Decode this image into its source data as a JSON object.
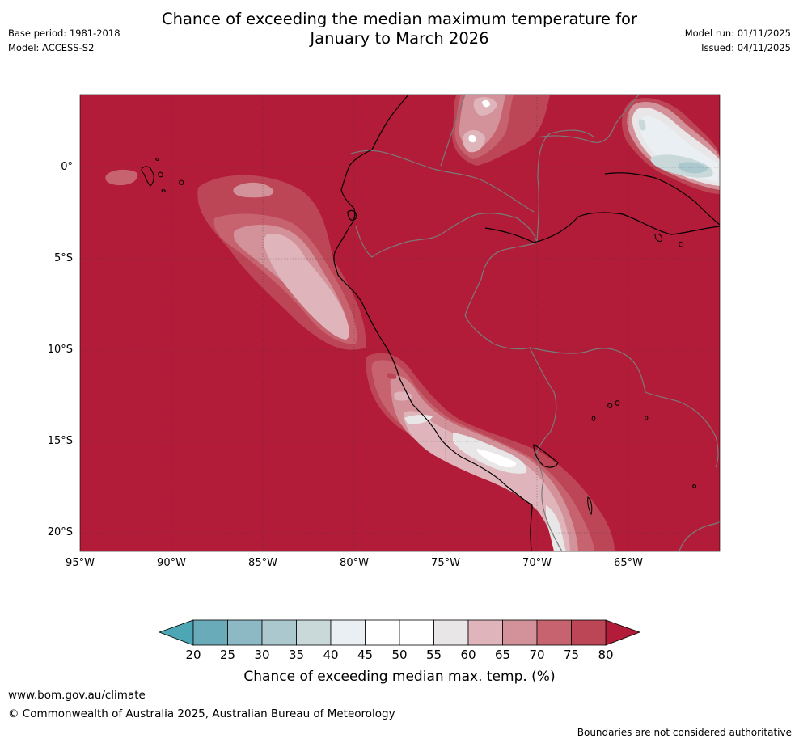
{
  "header": {
    "title_line1": "Chance of exceeding the median maximum temperature for",
    "title_line2": "January to March 2026",
    "base_period": "Base period: 1981-2018",
    "model": "Model: ACCESS-S2",
    "model_run": "Model run: 01/11/2025",
    "issued": "Issued: 04/11/2025"
  },
  "map": {
    "lat_labels": [
      "0°",
      "5°S",
      "10°S",
      "15°S",
      "20°S"
    ],
    "lon_labels": [
      "95°W",
      "90°W",
      "85°W",
      "80°W",
      "75°W",
      "70°W",
      "65°W"
    ],
    "background_color": "#b31c38"
  },
  "colorbar": {
    "ticks": [
      "20",
      "25",
      "30",
      "35",
      "40",
      "45",
      "50",
      "55",
      "60",
      "65",
      "70",
      "75",
      "80"
    ],
    "colors": [
      "#6aabb9",
      "#8cb9c4",
      "#abc8ce",
      "#c9d8d9",
      "#e9eff2",
      "#ffffff",
      "#ffffff",
      "#e8e6e6",
      "#dfb5bb",
      "#d3919a",
      "#c6636f",
      "#bd4656"
    ],
    "under_color": "#4da6b4",
    "over_color": "#b31c38",
    "label": "Chance of exceeding median max. temp. (%)"
  },
  "footer": {
    "website": "www.bom.gov.au/climate",
    "copyright": "© Commonwealth of Australia 2025, Australian Bureau of Meteorology",
    "disclaimer": "Boundaries are not considered authoritative"
  }
}
